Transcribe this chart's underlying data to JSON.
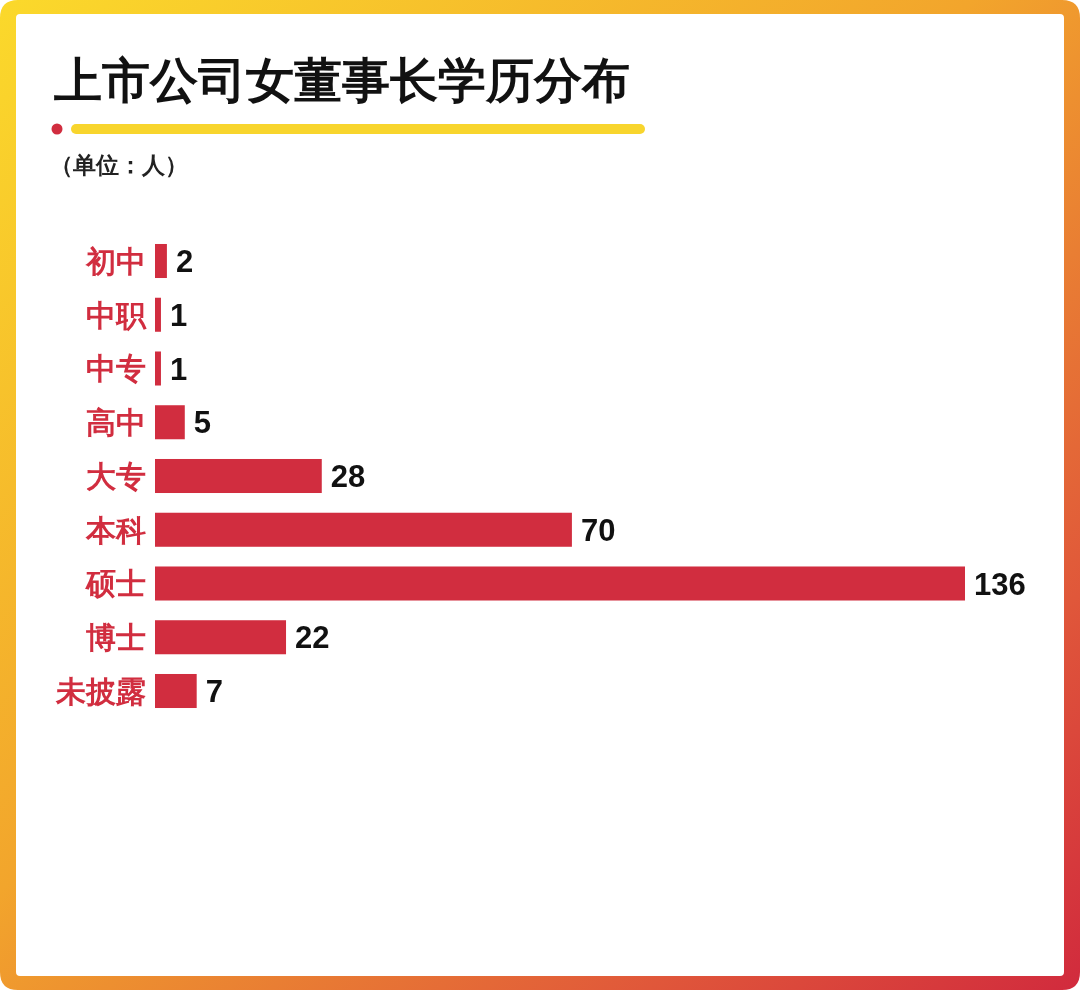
{
  "chart_data": {
    "type": "bar",
    "orientation": "horizontal",
    "title": "上市公司女董事长学历分布",
    "subtitle": "（单位：人）",
    "categories": [
      "初中",
      "中职",
      "中专",
      "高中",
      "大专",
      "本科",
      "硕士",
      "博士",
      "未披露"
    ],
    "values": [
      2,
      1,
      1,
      5,
      28,
      70,
      136,
      22,
      7
    ],
    "color": "#d12d3f",
    "data_labels": true
  }
}
